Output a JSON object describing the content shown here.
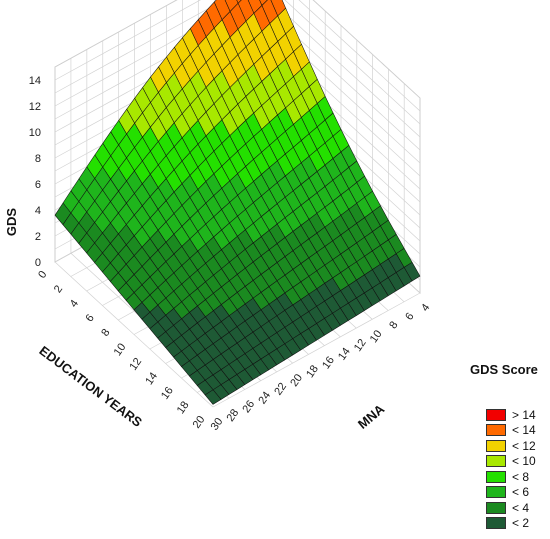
{
  "chart_data": {
    "type": "surface3d",
    "title": "",
    "zlabel": "GDS",
    "xlabel": "EDUCATION YEARS",
    "ylabel": "MNA",
    "x_ticks": [
      "0",
      "2",
      "4",
      "6",
      "8",
      "10",
      "12",
      "14",
      "16",
      "18",
      "20"
    ],
    "y_ticks": [
      "4",
      "6",
      "8",
      "10",
      "12",
      "14",
      "16",
      "18",
      "20",
      "22",
      "24",
      "26",
      "28",
      "30"
    ],
    "z_ticks": [
      "0",
      "2",
      "4",
      "6",
      "8",
      "10",
      "12",
      "14"
    ],
    "x_range": [
      0,
      20
    ],
    "y_range": [
      4,
      30
    ],
    "z_range": [
      0,
      15
    ],
    "corner_values": [
      {
        "education_years": 0,
        "mna": 30,
        "gds": 3.6
      },
      {
        "education_years": 20,
        "mna": 30,
        "gds": 0.2
      },
      {
        "education_years": 20,
        "mna": 4,
        "gds": 1.3
      },
      {
        "education_years": 0,
        "mna": 4,
        "gds": 15
      }
    ],
    "legend_title": "GDS Score",
    "legend": [
      {
        "label": "> 14",
        "color": "#f20000"
      },
      {
        "label": "< 14",
        "color": "#ff6a00"
      },
      {
        "label": "< 12",
        "color": "#f2d200"
      },
      {
        "label": "< 10",
        "color": "#a8e800"
      },
      {
        "label": "< 8",
        "color": "#24e000"
      },
      {
        "label": "< 6",
        "color": "#1fb51c"
      },
      {
        "label": "< 4",
        "color": "#1b8a20"
      },
      {
        "label": "< 2",
        "color": "#1e5a35"
      }
    ]
  }
}
